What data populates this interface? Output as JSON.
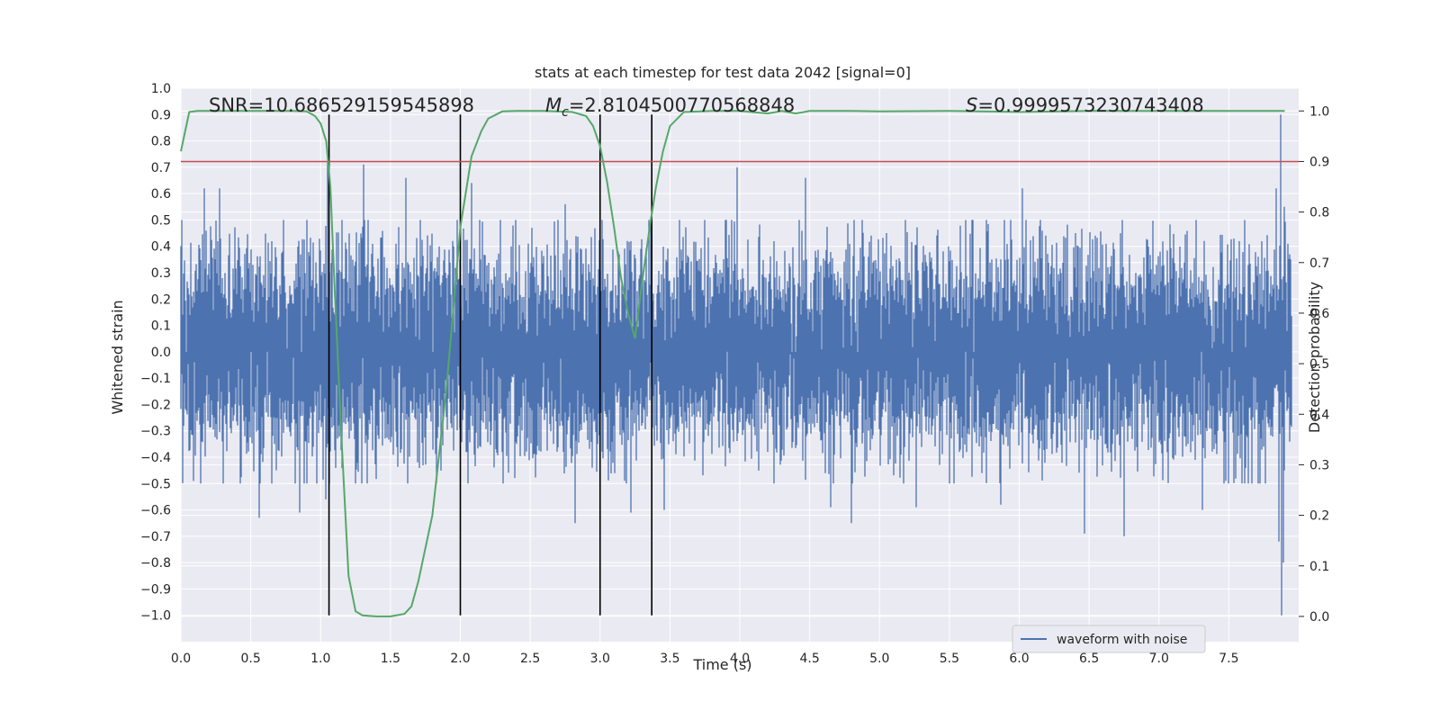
{
  "chart_data": {
    "type": "line",
    "title": "stats at each timestep for test data 2042 [signal=0]",
    "xlabel": "Time (s)",
    "ylabel": "Whitened strain",
    "y2label": "Detection probability",
    "xlim": [
      0.0,
      8.0
    ],
    "ylim": [
      -1.1,
      1.0
    ],
    "y2lim": [
      -0.05,
      1.045
    ],
    "xticks": [
      0.0,
      0.5,
      1.0,
      1.5,
      2.0,
      2.5,
      3.0,
      3.5,
      4.0,
      4.5,
      5.0,
      5.5,
      6.0,
      6.5,
      7.0,
      7.5
    ],
    "xtick_labels": [
      "0.0",
      "0.5",
      "1.0",
      "1.5",
      "2.0",
      "2.5",
      "3.0",
      "3.5",
      "4.0",
      "4.5",
      "5.0",
      "5.5",
      "6.0",
      "6.5",
      "7.0",
      "7.5"
    ],
    "yticks": [
      1.0,
      0.9,
      0.8,
      0.7,
      0.6,
      0.5,
      0.4,
      0.3,
      0.2,
      0.1,
      0.0,
      -0.1,
      -0.2,
      -0.3,
      -0.4,
      -0.5,
      -0.6,
      -0.7,
      -0.8,
      -0.9,
      -1.0
    ],
    "ytick_labels": [
      "1.0",
      "0.9",
      "0.8",
      "0.7",
      "0.6",
      "0.5",
      "0.4",
      "0.3",
      "0.2",
      "0.1",
      "0.0",
      "−0.1",
      "−0.2",
      "−0.3",
      "−0.4",
      "−0.5",
      "−0.6",
      "−0.7",
      "−0.8",
      "−0.9",
      "−1.0"
    ],
    "y2ticks": [
      1.0,
      0.9,
      0.8,
      0.7,
      0.6,
      0.5,
      0.4,
      0.3,
      0.2,
      0.1,
      0.0
    ],
    "y2tick_labels": [
      "1.0",
      "0.9",
      "0.8",
      "0.7",
      "0.6",
      "0.5",
      "0.4",
      "0.3",
      "0.2",
      "0.1",
      "0.0"
    ],
    "annotations": {
      "snr": "SNR=10.686529159545898",
      "mc_symbol": "M",
      "mc_sub": "c",
      "mc_value": "=2.8104500770568848",
      "s_symbol": "S",
      "s_value": "=0.9999573230743408"
    },
    "threshold": {
      "value": 0.9,
      "axis": "right",
      "color": "#c44e52"
    },
    "vlines": [
      1.06,
      2.0,
      3.0,
      3.37
    ],
    "waveform": {
      "name": "waveform with noise",
      "color": "#4c72b0",
      "duration": 7.95,
      "noise_std": 0.19,
      "spikes": [
        [
          0.17,
          0.62
        ],
        [
          0.28,
          0.62
        ],
        [
          0.56,
          -0.63
        ],
        [
          0.85,
          -0.61
        ],
        [
          1.05,
          0.72
        ],
        [
          1.04,
          -0.56
        ],
        [
          1.31,
          0.71
        ],
        [
          1.61,
          0.66
        ],
        [
          2.08,
          0.64
        ],
        [
          2.75,
          0.56
        ],
        [
          2.82,
          -0.65
        ],
        [
          3.22,
          0.42
        ],
        [
          3.22,
          -0.61
        ],
        [
          3.36,
          0.51
        ],
        [
          3.46,
          -0.6
        ],
        [
          3.98,
          0.7
        ],
        [
          4.47,
          0.66
        ],
        [
          4.65,
          -0.59
        ],
        [
          4.8,
          -0.65
        ],
        [
          5.26,
          -0.59
        ],
        [
          5.87,
          -0.58
        ],
        [
          6.02,
          0.62
        ],
        [
          6.47,
          -0.69
        ],
        [
          6.75,
          -0.7
        ],
        [
          7.31,
          -0.6
        ],
        [
          7.84,
          0.62
        ],
        [
          7.87,
          0.9
        ],
        [
          7.88,
          -1.0
        ],
        [
          7.89,
          -0.8
        ],
        [
          7.9,
          0.55
        ],
        [
          7.86,
          -0.72
        ]
      ]
    },
    "probability": {
      "color": "#55a868",
      "x": [
        0.0,
        0.06,
        0.12,
        0.2,
        0.4,
        0.6,
        0.8,
        0.9,
        0.96,
        1.0,
        1.04,
        1.07,
        1.1,
        1.15,
        1.2,
        1.25,
        1.3,
        1.35,
        1.4,
        1.5,
        1.6,
        1.65,
        1.7,
        1.8,
        1.9,
        2.0,
        2.08,
        2.15,
        2.2,
        2.3,
        2.4,
        2.6,
        2.8,
        2.9,
        2.95,
        3.0,
        3.05,
        3.1,
        3.15,
        3.2,
        3.25,
        3.3,
        3.35,
        3.4,
        3.45,
        3.5,
        3.6,
        3.8,
        4.0,
        4.2,
        4.3,
        4.4,
        4.5,
        4.8,
        5.0,
        5.5,
        6.0,
        6.5,
        7.0,
        7.5,
        7.9
      ],
      "values": [
        0.92,
        0.998,
        1.0,
        1.0,
        1.0,
        1.0,
        1.0,
        0.999,
        0.99,
        0.975,
        0.94,
        0.85,
        0.65,
        0.35,
        0.08,
        0.01,
        0.002,
        0.001,
        0.0,
        0.0,
        0.005,
        0.02,
        0.07,
        0.2,
        0.45,
        0.77,
        0.91,
        0.96,
        0.985,
        0.999,
        1.0,
        1.0,
        0.998,
        0.99,
        0.97,
        0.93,
        0.86,
        0.77,
        0.67,
        0.6,
        0.55,
        0.66,
        0.76,
        0.85,
        0.92,
        0.97,
        0.998,
        1.0,
        1.0,
        0.995,
        1.0,
        0.995,
        1.0,
        1.0,
        0.999,
        1.0,
        0.998,
        1.0,
        1.0,
        1.0,
        1.0
      ]
    },
    "legend": {
      "position": "lower-right",
      "entry": "waveform with noise"
    }
  }
}
